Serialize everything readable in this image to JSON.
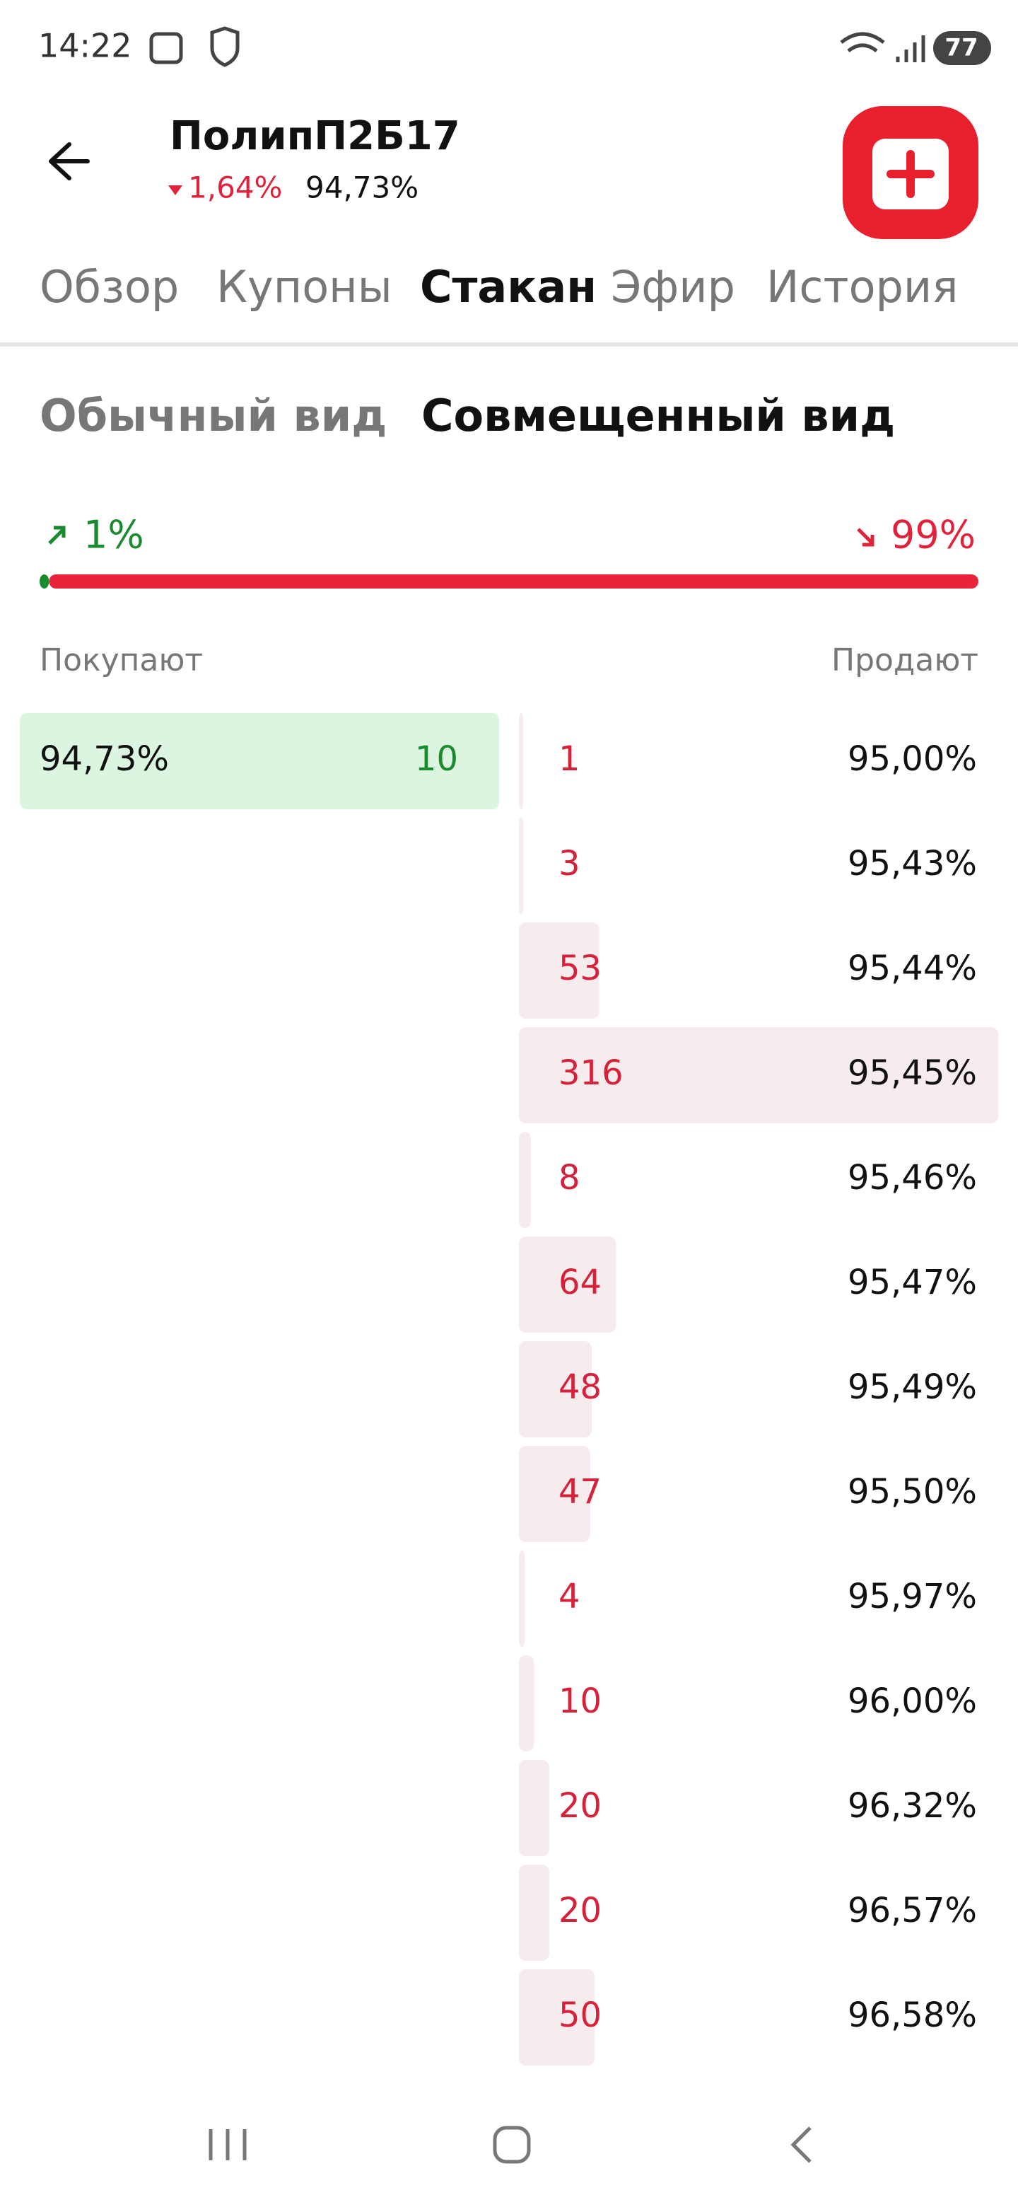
{
  "status_bar": {
    "time": "14:22",
    "battery": "77"
  },
  "header": {
    "title": "ПолипП2Б17",
    "change": "1,64%",
    "price": "94,73%"
  },
  "tabs": [
    "Обзор",
    "Купоны",
    "Стакан",
    "Эфир",
    "История"
  ],
  "active_tab": 2,
  "view_toggle": {
    "options": [
      "Обычный вид",
      "Совмещенный вид"
    ],
    "active": 1
  },
  "balance": {
    "buy": {
      "value": 1,
      "label": "1%"
    },
    "sell": {
      "value": 99,
      "label": "99%"
    }
  },
  "order_book": {
    "buy_label": "Покупают",
    "sell_label": "Продают",
    "bids": [
      {
        "price": "94,73%",
        "quantity": 10
      }
    ],
    "asks": [
      {
        "quantity": 1,
        "price": "95,00%"
      },
      {
        "quantity": 3,
        "price": "95,43%"
      },
      {
        "quantity": 53,
        "price": "95,44%"
      },
      {
        "quantity": 316,
        "price": "95,45%"
      },
      {
        "quantity": 8,
        "price": "95,46%"
      },
      {
        "quantity": 64,
        "price": "95,47%"
      },
      {
        "quantity": 48,
        "price": "95,49%"
      },
      {
        "quantity": 47,
        "price": "95,50%"
      },
      {
        "quantity": 4,
        "price": "95,97%"
      },
      {
        "quantity": 10,
        "price": "96,00%"
      },
      {
        "quantity": 20,
        "price": "96,32%"
      },
      {
        "quantity": 20,
        "price": "96,57%"
      },
      {
        "quantity": 50,
        "price": "96,58%"
      }
    ]
  }
}
